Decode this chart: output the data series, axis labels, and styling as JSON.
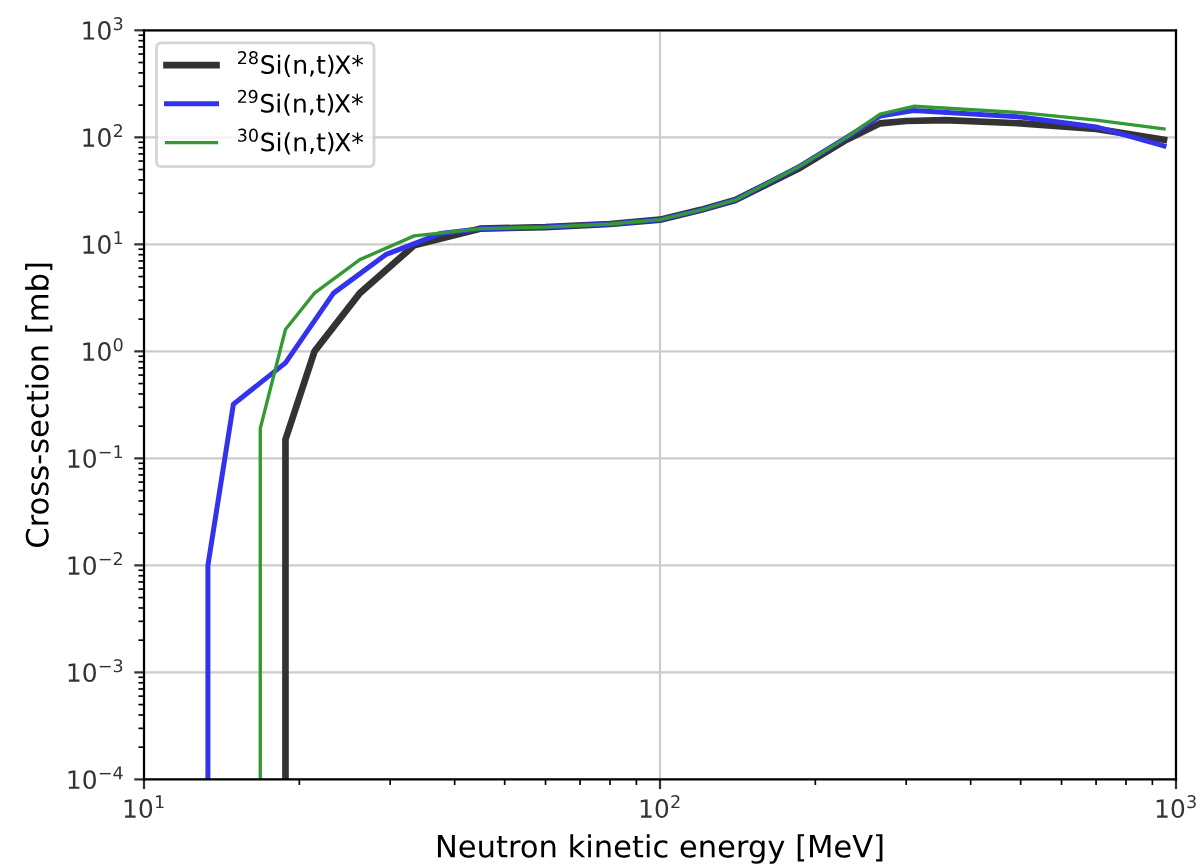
{
  "chart_data": {
    "type": "line",
    "xlabel": "Neutron kinetic energy [MeV]",
    "ylabel": "Cross-section [mb]",
    "log": "xy",
    "grid": true,
    "legend": "top left",
    "line_style": "solid",
    "marker": "none",
    "xlim": [
      10,
      1000
    ],
    "ylim": [
      0.0001,
      1000
    ],
    "xticks": [
      {
        "value": 10,
        "label": "10$^{1}$"
      },
      {
        "value": 100,
        "label": "10$^{2}$"
      },
      {
        "value": 1000,
        "label": "10$^{3}$"
      }
    ],
    "yticks": [
      {
        "value": 0.0001,
        "label": "10$^{−4}$"
      },
      {
        "value": 0.001,
        "label": "10$^{−3}$"
      },
      {
        "value": 0.01,
        "label": "10$^{−2}$"
      },
      {
        "value": 0.1,
        "label": "10$^{−1}$"
      },
      {
        "value": 1,
        "label": "10$^{0}$"
      },
      {
        "value": 10,
        "label": "10$^{1}$"
      },
      {
        "value": 100,
        "label": "10$^{2}$"
      },
      {
        "value": 1000,
        "label": "10$^{3}$"
      }
    ],
    "series": [
      {
        "name": "$^{28}$Si(n,t)X*",
        "color": "#333333",
        "x": [
          18.8,
          18.8,
          21.4,
          26.2,
          33.4,
          44.8,
          60,
          80,
          100,
          120,
          140,
          187,
          230,
          267,
          300,
          358,
          500,
          700,
          948
        ],
        "values": [
          0.0001,
          0.15,
          1,
          3.5,
          9.8,
          14,
          14.5,
          15.5,
          17,
          21,
          26,
          52,
          95,
          135,
          142,
          145,
          135,
          120,
          95
        ]
      },
      {
        "name": "$^{29}$Si(n,t)X*",
        "color": "#3333ee",
        "x": [
          13.3,
          13.3,
          14.9,
          18.8,
          23.3,
          29.4,
          37.5,
          45,
          60,
          80,
          100,
          120,
          140,
          187,
          230,
          267,
          310,
          500,
          700,
          948
        ],
        "values": [
          0.0001,
          0.01,
          0.32,
          0.78,
          3.5,
          8,
          12.6,
          14,
          14.5,
          15.5,
          17,
          21,
          26,
          54,
          100,
          158,
          178,
          155,
          125,
          83
        ]
      },
      {
        "name": "$^{30}$Si(n,t)X*",
        "color": "#339933",
        "x": [
          16.8,
          16.8,
          18.8,
          21.4,
          26.2,
          33.4,
          45,
          60,
          80,
          100,
          120,
          140,
          187,
          230,
          267,
          310,
          500,
          700,
          948
        ],
        "values": [
          0.0001,
          0.19,
          1.6,
          3.5,
          7.2,
          12,
          14,
          14.5,
          15.5,
          17,
          21,
          26,
          54,
          100,
          165,
          195,
          170,
          145,
          120
        ]
      }
    ]
  }
}
